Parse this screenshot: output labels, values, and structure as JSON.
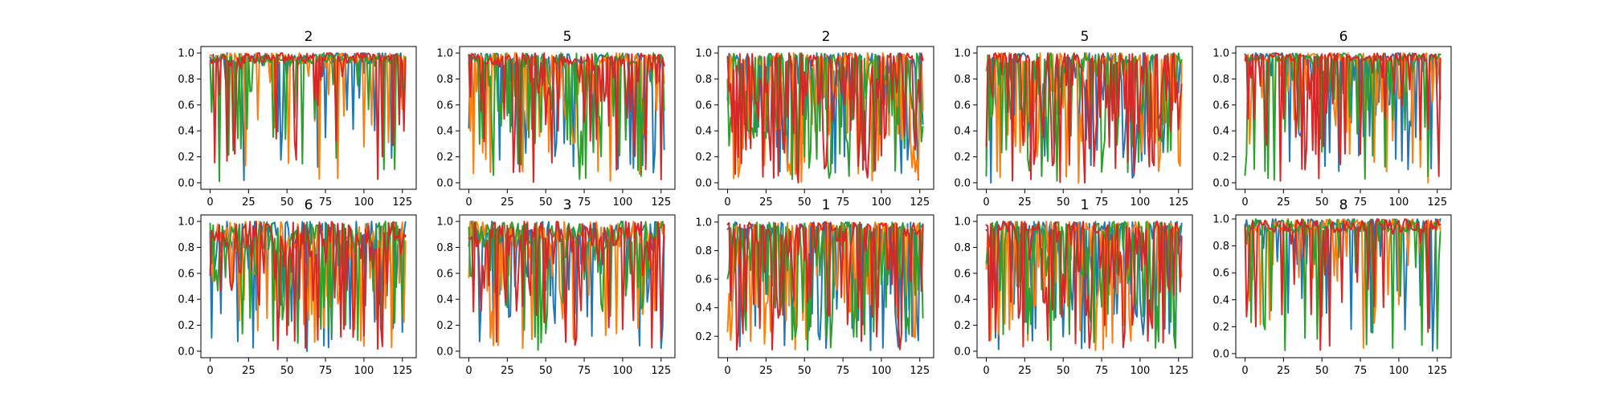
{
  "colors": {
    "series": [
      "#1f77b4",
      "#ff7f0e",
      "#2ca02c",
      "#d62728"
    ],
    "background": "#ffffff",
    "axes": "#000000"
  },
  "chart_data": [
    {
      "type": "line",
      "title": "2",
      "xlim": [
        -6,
        134
      ],
      "ylim": [
        -0.05,
        1.05
      ],
      "xticks": [
        0,
        25,
        50,
        75,
        100,
        125
      ],
      "yticks": [
        0.0,
        0.2,
        0.4,
        0.6,
        0.8,
        1.0
      ],
      "series_count": 4,
      "minimum": 0.0,
      "character": {
        "values_range": [
          0.0,
          1.0
        ],
        "behavior": "mostly near 1.0, scattered dips"
      }
    },
    {
      "type": "line",
      "title": "5",
      "xlim": [
        -6,
        134
      ],
      "ylim": [
        -0.05,
        1.05
      ],
      "xticks": [
        0,
        25,
        50,
        75,
        100,
        125
      ],
      "yticks": [
        0.0,
        0.2,
        0.4,
        0.6,
        0.8,
        1.0
      ],
      "series_count": 4,
      "minimum": 0.0,
      "character": {
        "values_range": [
          0.0,
          1.0
        ],
        "behavior": "frequent deep oscillations"
      }
    },
    {
      "type": "line",
      "title": "2",
      "xlim": [
        -6,
        134
      ],
      "ylim": [
        -0.05,
        1.05
      ],
      "xticks": [
        0,
        25,
        50,
        75,
        100,
        125
      ],
      "yticks": [
        0.0,
        0.2,
        0.4,
        0.6,
        0.8,
        1.0
      ],
      "series_count": 4,
      "minimum": 0.0,
      "character": {
        "values_range": [
          0.0,
          1.0
        ],
        "behavior": "dense full-range oscillations"
      }
    },
    {
      "type": "line",
      "title": "5",
      "xlim": [
        -6,
        134
      ],
      "ylim": [
        -0.05,
        1.05
      ],
      "xticks": [
        0,
        25,
        50,
        75,
        100,
        125
      ],
      "yticks": [
        0.0,
        0.2,
        0.4,
        0.6,
        0.8,
        1.0
      ],
      "series_count": 4,
      "minimum": 0.0,
      "character": {
        "values_range": [
          0.0,
          1.0
        ],
        "behavior": "dense oscillations with deep dips"
      }
    },
    {
      "type": "line",
      "title": "6",
      "xlim": [
        -6,
        134
      ],
      "ylim": [
        -0.05,
        1.05
      ],
      "xticks": [
        0,
        25,
        50,
        75,
        100,
        125
      ],
      "yticks": [
        0.0,
        0.2,
        0.4,
        0.6,
        0.8,
        1.0
      ],
      "series_count": 4,
      "minimum": 0.0,
      "character": {
        "values_range": [
          0.0,
          1.0
        ],
        "behavior": "mostly high with frequent dips"
      }
    },
    {
      "type": "line",
      "title": "6",
      "xlim": [
        -6,
        134
      ],
      "ylim": [
        -0.05,
        1.05
      ],
      "xticks": [
        0,
        25,
        50,
        75,
        100,
        125
      ],
      "yticks": [
        0.0,
        0.2,
        0.4,
        0.6,
        0.8,
        1.0
      ],
      "series_count": 4,
      "minimum": 0.0,
      "character": {
        "values_range": [
          0.0,
          1.0
        ],
        "behavior": "noisy, wide spread"
      }
    },
    {
      "type": "line",
      "title": "3",
      "xlim": [
        -6,
        134
      ],
      "ylim": [
        -0.05,
        1.05
      ],
      "xticks": [
        0,
        25,
        50,
        75,
        100,
        125
      ],
      "yticks": [
        0.0,
        0.2,
        0.4,
        0.6,
        0.8,
        1.0
      ],
      "series_count": 4,
      "minimum": 0.0,
      "character": {
        "values_range": [
          0.0,
          1.0
        ],
        "behavior": "noisy, deep dips on the right"
      }
    },
    {
      "type": "line",
      "title": "1",
      "xlim": [
        -6,
        134
      ],
      "ylim": [
        0.05,
        1.05
      ],
      "xticks": [
        0,
        25,
        50,
        75,
        100,
        125
      ],
      "yticks": [
        0.2,
        0.4,
        0.6,
        0.8,
        1.0
      ],
      "series_count": 4,
      "minimum": 0.1,
      "character": {
        "values_range": [
          0.1,
          1.0
        ],
        "behavior": "dense oscillations"
      }
    },
    {
      "type": "line",
      "title": "1",
      "xlim": [
        -6,
        134
      ],
      "ylim": [
        -0.05,
        1.05
      ],
      "xticks": [
        0,
        25,
        50,
        75,
        100,
        125
      ],
      "yticks": [
        0.0,
        0.2,
        0.4,
        0.6,
        0.8,
        1.0
      ],
      "series_count": 4,
      "minimum": 0.0,
      "character": {
        "values_range": [
          0.0,
          1.0
        ],
        "behavior": "dense oscillations"
      }
    },
    {
      "type": "line",
      "title": "8",
      "xlim": [
        -6,
        134
      ],
      "ylim": [
        -0.03,
        1.03
      ],
      "xticks": [
        0,
        25,
        50,
        75,
        100,
        125
      ],
      "yticks": [
        0.0,
        0.2,
        0.4,
        0.6,
        0.8,
        1.0
      ],
      "series_count": 4,
      "minimum": 0.02,
      "character": {
        "values_range": [
          0.02,
          1.0
        ],
        "behavior": "mostly near 1.0 with dips"
      }
    }
  ]
}
